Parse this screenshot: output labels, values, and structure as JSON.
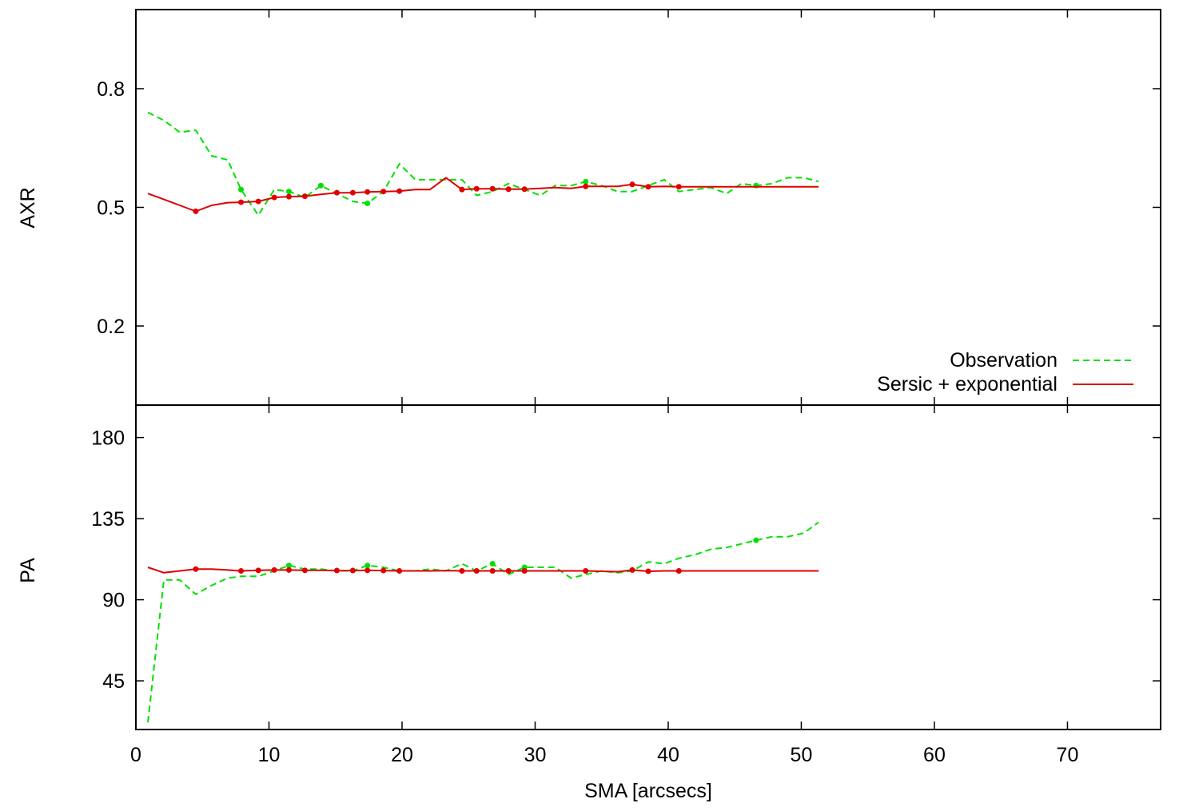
{
  "colors": {
    "observation": "#00e000",
    "model": "#e00000",
    "axes": "#000000"
  },
  "legend": {
    "placement": "bottom-right of top panel",
    "entries": [
      "Observation",
      "Sersic + exponential"
    ]
  },
  "chart_data": [
    {
      "type": "line",
      "ylabel": "AXR",
      "xlim": [
        0,
        77
      ],
      "ylim": [
        0.0,
        1.0
      ],
      "yticks": [
        0.2,
        0.5,
        0.8
      ],
      "ytick_labels": [
        "0.2",
        "0.5",
        "0.8"
      ],
      "xticks": [
        0,
        10,
        20,
        30,
        40,
        50,
        60,
        70
      ],
      "xtick_labels": [],
      "series": [
        {
          "name": "Observation",
          "style": "dashed",
          "marker_x": [
            7.9,
            11.5,
            13.9,
            17.4,
            33.8,
            46.6
          ],
          "points": [
            [
              0.9,
              0.74
            ],
            [
              2.1,
              0.72
            ],
            [
              3.3,
              0.69
            ],
            [
              4.5,
              0.695
            ],
            [
              5.7,
              0.63
            ],
            [
              6.9,
              0.62
            ],
            [
              7.9,
              0.545
            ],
            [
              9.2,
              0.48
            ],
            [
              10.4,
              0.545
            ],
            [
              11.5,
              0.54
            ],
            [
              12.7,
              0.525
            ],
            [
              13.9,
              0.555
            ],
            [
              15.1,
              0.535
            ],
            [
              16.3,
              0.515
            ],
            [
              17.4,
              0.51
            ],
            [
              18.6,
              0.54
            ],
            [
              19.8,
              0.61
            ],
            [
              21.0,
              0.57
            ],
            [
              22.1,
              0.57
            ],
            [
              23.3,
              0.57
            ],
            [
              24.5,
              0.57
            ],
            [
              25.6,
              0.53
            ],
            [
              26.8,
              0.54
            ],
            [
              28.0,
              0.56
            ],
            [
              29.2,
              0.545
            ],
            [
              30.4,
              0.53
            ],
            [
              31.5,
              0.555
            ],
            [
              32.7,
              0.555
            ],
            [
              33.8,
              0.565
            ],
            [
              35.0,
              0.555
            ],
            [
              36.2,
              0.54
            ],
            [
              37.3,
              0.54
            ],
            [
              38.5,
              0.555
            ],
            [
              39.7,
              0.57
            ],
            [
              40.8,
              0.54
            ],
            [
              42.0,
              0.545
            ],
            [
              43.2,
              0.55
            ],
            [
              44.4,
              0.535
            ],
            [
              45.5,
              0.56
            ],
            [
              46.6,
              0.555
            ],
            [
              47.8,
              0.56
            ],
            [
              49.0,
              0.575
            ],
            [
              50.2,
              0.575
            ],
            [
              51.3,
              0.565
            ]
          ]
        },
        {
          "name": "Sersic + exponential",
          "style": "solid",
          "marker_x": [
            4.5,
            7.9,
            9.2,
            10.4,
            11.5,
            12.7,
            15.1,
            16.3,
            17.4,
            18.6,
            19.8,
            24.5,
            25.6,
            26.8,
            28.0,
            29.2,
            33.8,
            37.3,
            38.5,
            40.8
          ],
          "points": [
            [
              0.9,
              0.535
            ],
            [
              2.1,
              0.52
            ],
            [
              3.3,
              0.505
            ],
            [
              4.5,
              0.49
            ],
            [
              5.7,
              0.505
            ],
            [
              6.9,
              0.512
            ],
            [
              7.9,
              0.513
            ],
            [
              9.2,
              0.515
            ],
            [
              10.4,
              0.525
            ],
            [
              11.5,
              0.527
            ],
            [
              12.7,
              0.528
            ],
            [
              13.9,
              0.533
            ],
            [
              15.1,
              0.537
            ],
            [
              16.3,
              0.537
            ],
            [
              17.4,
              0.539
            ],
            [
              18.6,
              0.54
            ],
            [
              19.8,
              0.541
            ],
            [
              21.0,
              0.545
            ],
            [
              22.1,
              0.545
            ],
            [
              23.3,
              0.575
            ],
            [
              24.5,
              0.545
            ],
            [
              25.6,
              0.547
            ],
            [
              26.8,
              0.547
            ],
            [
              28.0,
              0.546
            ],
            [
              29.2,
              0.546
            ],
            [
              30.4,
              0.548
            ],
            [
              31.5,
              0.55
            ],
            [
              32.7,
              0.548
            ],
            [
              33.8,
              0.553
            ],
            [
              35.0,
              0.553
            ],
            [
              36.2,
              0.553
            ],
            [
              37.3,
              0.558
            ],
            [
              38.5,
              0.552
            ],
            [
              39.7,
              0.553
            ],
            [
              40.8,
              0.552
            ],
            [
              42.0,
              0.552
            ],
            [
              51.3,
              0.552
            ]
          ]
        }
      ]
    },
    {
      "type": "line",
      "ylabel": "PA",
      "xlabel": "SMA [arcsecs]",
      "xlim": [
        0,
        77
      ],
      "ylim": [
        18,
        198
      ],
      "yticks": [
        45,
        90,
        135,
        180
      ],
      "ytick_labels": [
        "45",
        "90",
        "135",
        "180"
      ],
      "xticks": [
        0,
        10,
        20,
        30,
        40,
        50,
        60,
        70
      ],
      "xtick_labels": [
        "0",
        "10",
        "20",
        "30",
        "40",
        "50",
        "60",
        "70"
      ],
      "series": [
        {
          "name": "Observation",
          "style": "dashed",
          "marker_x": [
            11.5,
            17.4,
            26.8,
            29.2,
            46.6
          ],
          "points": [
            [
              0.9,
              22
            ],
            [
              2.1,
              101
            ],
            [
              3.3,
              101
            ],
            [
              4.5,
              93
            ],
            [
              5.7,
              98
            ],
            [
              6.9,
              102
            ],
            [
              7.9,
              103
            ],
            [
              9.2,
              103
            ],
            [
              10.4,
              106
            ],
            [
              11.5,
              109
            ],
            [
              12.7,
              107
            ],
            [
              13.9,
              107
            ],
            [
              15.1,
              106
            ],
            [
              16.3,
              106
            ],
            [
              17.4,
              109
            ],
            [
              18.6,
              108
            ],
            [
              19.8,
              106
            ],
            [
              21.0,
              106
            ],
            [
              22.1,
              107
            ],
            [
              23.3,
              106
            ],
            [
              24.5,
              110
            ],
            [
              25.6,
              106
            ],
            [
              26.8,
              110
            ],
            [
              28.0,
              104
            ],
            [
              29.2,
              108
            ],
            [
              30.4,
              108
            ],
            [
              31.5,
              108
            ],
            [
              32.7,
              102
            ],
            [
              33.8,
              104
            ],
            [
              35.0,
              106
            ],
            [
              36.2,
              105
            ],
            [
              37.3,
              106
            ],
            [
              38.5,
              111
            ],
            [
              39.7,
              110
            ],
            [
              40.8,
              113
            ],
            [
              42.0,
              115
            ],
            [
              43.2,
              118
            ],
            [
              44.4,
              119
            ],
            [
              45.5,
              121
            ],
            [
              46.6,
              123
            ],
            [
              47.8,
              125
            ],
            [
              49.0,
              125
            ],
            [
              50.2,
              127
            ],
            [
              51.3,
              133
            ]
          ]
        },
        {
          "name": "Sersic + exponential",
          "style": "solid",
          "marker_x": [
            4.5,
            7.9,
            9.2,
            10.4,
            11.5,
            12.7,
            15.1,
            16.3,
            17.4,
            18.6,
            19.8,
            24.5,
            25.6,
            26.8,
            28.0,
            29.2,
            33.8,
            37.3,
            38.5,
            40.8
          ],
          "points": [
            [
              0.9,
              108
            ],
            [
              2.1,
              105
            ],
            [
              3.3,
              106
            ],
            [
              4.5,
              107
            ],
            [
              5.7,
              107
            ],
            [
              6.9,
              106.5
            ],
            [
              7.9,
              106
            ],
            [
              9.2,
              106.3
            ],
            [
              10.4,
              106.5
            ],
            [
              11.5,
              106.5
            ],
            [
              12.7,
              106.3
            ],
            [
              13.9,
              106.3
            ],
            [
              15.1,
              106.2
            ],
            [
              16.3,
              106.2
            ],
            [
              17.4,
              106.3
            ],
            [
              18.6,
              106.2
            ],
            [
              19.8,
              106
            ],
            [
              21.0,
              106
            ],
            [
              22.1,
              106
            ],
            [
              23.3,
              106.2
            ],
            [
              24.5,
              106
            ],
            [
              25.6,
              106
            ],
            [
              26.8,
              106
            ],
            [
              28.0,
              106
            ],
            [
              29.2,
              106
            ],
            [
              30.4,
              106
            ],
            [
              31.5,
              106
            ],
            [
              32.7,
              106
            ],
            [
              33.8,
              106
            ],
            [
              35.0,
              105.8
            ],
            [
              36.2,
              105.5
            ],
            [
              37.3,
              106.5
            ],
            [
              38.5,
              105.8
            ],
            [
              39.7,
              106
            ],
            [
              40.8,
              106
            ],
            [
              51.3,
              106
            ]
          ]
        }
      ]
    }
  ]
}
